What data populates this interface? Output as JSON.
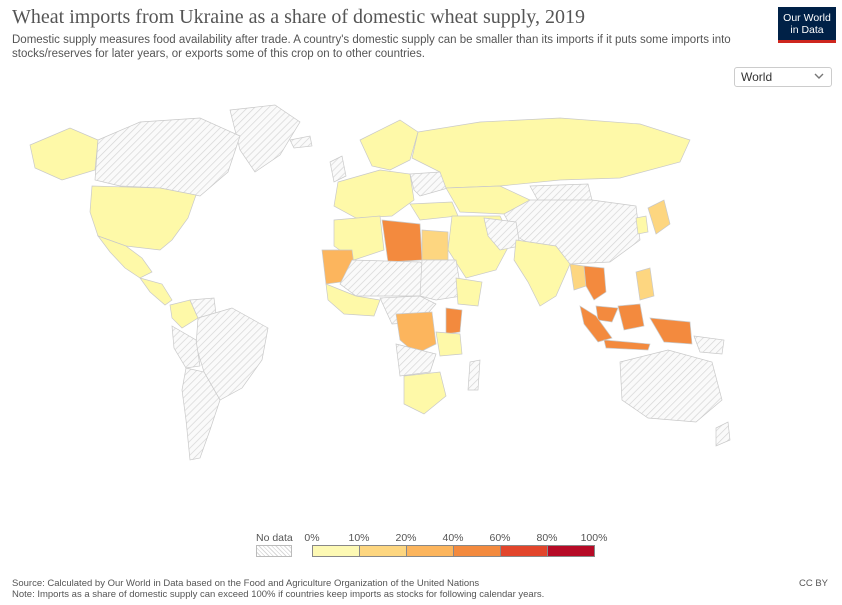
{
  "header": {
    "title": "Wheat imports from Ukraine as a share of domestic wheat supply, 2019",
    "subtitle": "Domestic supply measures food availability after trade. A country's domestic supply can be smaller than its imports if it puts some imports into stocks/reserves for later years, or exports some of this crop on to other countries.",
    "logo_line1": "Our World",
    "logo_line2": "in Data"
  },
  "controls": {
    "region_selected": "World"
  },
  "icons": {
    "dropdown": "chevron-down-icon"
  },
  "legend": {
    "no_data_label": "No data",
    "tick_labels": [
      "0%",
      "10%",
      "20%",
      "40%",
      "60%",
      "80%",
      "100%"
    ],
    "bin_colors": [
      "#fdf9b4",
      "#fdd680",
      "#fcb55d",
      "#f38a3e",
      "#e2452b",
      "#b60a26"
    ],
    "no_data_color": "#e6e6e6"
  },
  "map_colors": {
    "ocean": "#ffffff",
    "land_low": "#fef9a8",
    "border": "#cfcfcf"
  },
  "countries": [
    {
      "name": "United States",
      "bin": 0
    },
    {
      "name": "Canada",
      "bin": -1
    },
    {
      "name": "Mexico",
      "bin": 0
    },
    {
      "name": "Brazil",
      "bin": -1
    },
    {
      "name": "Russia",
      "bin": 0
    },
    {
      "name": "China",
      "bin": -1
    },
    {
      "name": "India",
      "bin": 0
    },
    {
      "name": "Libya",
      "bin": 3
    },
    {
      "name": "Mauritania",
      "bin": 2
    },
    {
      "name": "Egypt",
      "bin": 1
    },
    {
      "name": "DR Congo",
      "bin": 2
    },
    {
      "name": "Kenya",
      "bin": 3
    },
    {
      "name": "Indonesia",
      "bin": 3
    },
    {
      "name": "Thailand",
      "bin": 3
    },
    {
      "name": "Australia",
      "bin": -1
    },
    {
      "name": "South Africa",
      "bin": 0
    }
  ],
  "footer": {
    "source": "Source: Calculated by Our World in Data based on the Food and Agriculture Organization of the United Nations",
    "note": "Note: Imports as a share of domestic supply can exceed 100% if countries keep imports as stocks for following calendar years.",
    "license": "CC BY"
  }
}
